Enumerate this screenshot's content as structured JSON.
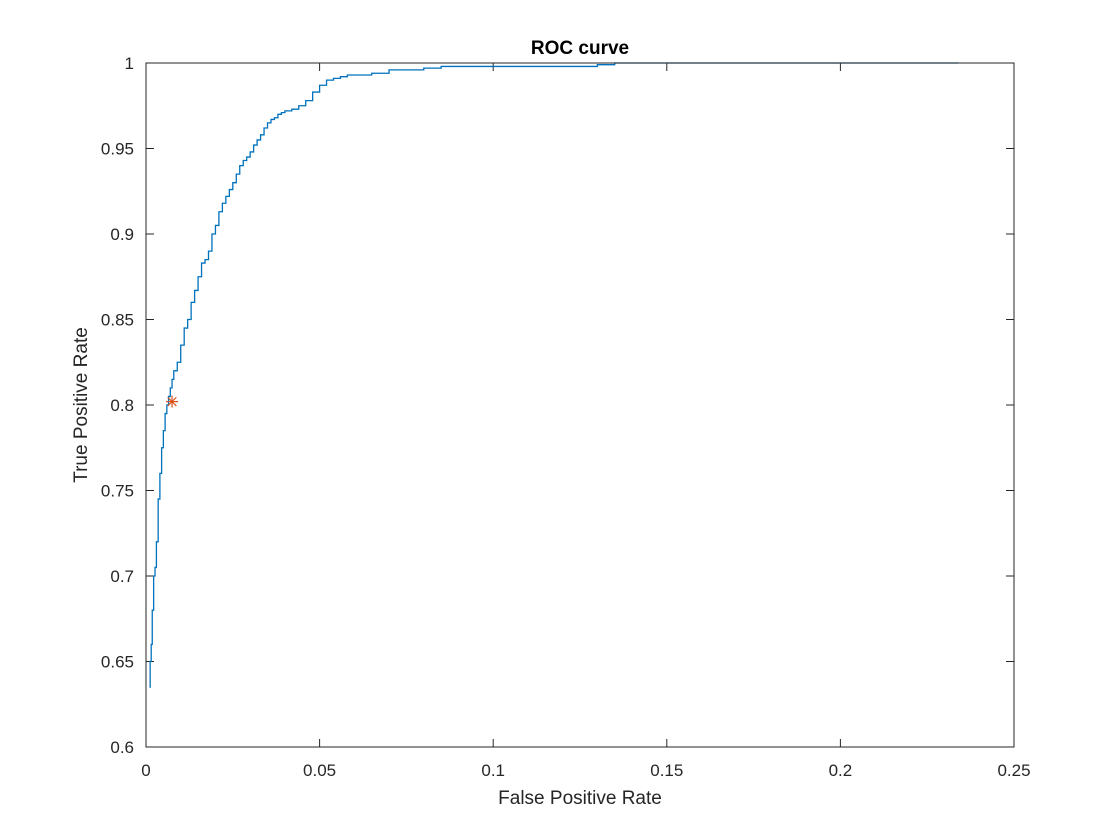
{
  "chart_data": {
    "type": "line",
    "title": "ROC curve",
    "xlabel": "False Positive Rate",
    "ylabel": "True Positive Rate",
    "xlim": [
      0,
      0.25
    ],
    "ylim": [
      0.6,
      1
    ],
    "xticks": [
      0,
      0.05,
      0.1,
      0.15,
      0.2,
      0.25
    ],
    "xtick_labels": [
      "0",
      "0.05",
      "0.1",
      "0.15",
      "0.2",
      "0.25"
    ],
    "yticks": [
      0.6,
      0.65,
      0.7,
      0.75,
      0.8,
      0.85,
      0.9,
      0.95,
      1
    ],
    "ytick_labels": [
      "0.6",
      "0.65",
      "0.7",
      "0.75",
      "0.8",
      "0.85",
      "0.9",
      "0.95",
      "1"
    ],
    "grid": false,
    "box": true,
    "series": [
      {
        "type": "line",
        "color": "#0072BD",
        "x": [
          0.001,
          0.0012,
          0.0015,
          0.0018,
          0.0022,
          0.0026,
          0.003,
          0.0035,
          0.004,
          0.0045,
          0.005,
          0.0055,
          0.006,
          0.0065,
          0.007,
          0.0075,
          0.008,
          0.009,
          0.01,
          0.011,
          0.012,
          0.013,
          0.014,
          0.015,
          0.016,
          0.017,
          0.018,
          0.019,
          0.02,
          0.021,
          0.022,
          0.023,
          0.024,
          0.025,
          0.026,
          0.027,
          0.028,
          0.029,
          0.03,
          0.031,
          0.032,
          0.033,
          0.034,
          0.035,
          0.036,
          0.037,
          0.038,
          0.039,
          0.04,
          0.042,
          0.044,
          0.046,
          0.048,
          0.05,
          0.052,
          0.054,
          0.056,
          0.058,
          0.06,
          0.065,
          0.07,
          0.08,
          0.085,
          0.09,
          0.1,
          0.11,
          0.12,
          0.13,
          0.135,
          0.14,
          0.16,
          0.18,
          0.2,
          0.22,
          0.234
        ],
        "y": [
          0.635,
          0.65,
          0.66,
          0.68,
          0.7,
          0.705,
          0.72,
          0.745,
          0.76,
          0.775,
          0.785,
          0.795,
          0.8,
          0.805,
          0.81,
          0.815,
          0.82,
          0.825,
          0.835,
          0.845,
          0.85,
          0.86,
          0.867,
          0.875,
          0.883,
          0.885,
          0.89,
          0.9,
          0.905,
          0.913,
          0.918,
          0.922,
          0.926,
          0.93,
          0.935,
          0.94,
          0.943,
          0.945,
          0.948,
          0.952,
          0.955,
          0.958,
          0.962,
          0.965,
          0.967,
          0.968,
          0.97,
          0.971,
          0.972,
          0.973,
          0.975,
          0.978,
          0.983,
          0.987,
          0.99,
          0.991,
          0.992,
          0.993,
          0.993,
          0.994,
          0.996,
          0.997,
          0.998,
          0.998,
          0.998,
          0.998,
          0.998,
          0.999,
          1.0,
          1.0,
          1.0,
          1.0,
          1.0,
          1.0,
          1.0
        ]
      },
      {
        "type": "scatter",
        "color": "#D95319",
        "marker": "asterisk",
        "x": [
          0.0075
        ],
        "y": [
          0.802
        ]
      }
    ]
  }
}
